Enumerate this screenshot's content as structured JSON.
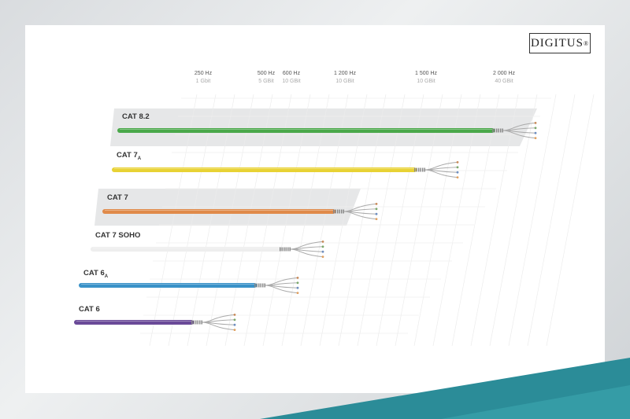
{
  "brand": {
    "logo": "DIGITUS",
    "registered": "®"
  },
  "colors": {
    "teal": "#2b8c98",
    "panel": "#e6e7e8"
  },
  "chart_data": {
    "type": "bar",
    "orientation": "horizontal",
    "ticks": [
      {
        "hz": "250 Hz",
        "speed": "1 Gbit"
      },
      {
        "hz": "500 Hz",
        "speed": "5 GBit"
      },
      {
        "hz": "600 Hz",
        "speed": "10 GBit"
      },
      {
        "hz": "1 200 Hz",
        "speed": "10 GBit"
      },
      {
        "hz": "1 500 Hz",
        "speed": "10 GBit"
      },
      {
        "hz": "2 000 Hz",
        "speed": "40 GBit"
      }
    ],
    "series": [
      {
        "label": "CAT 8.2",
        "sub": "",
        "value": 2000,
        "color": "#4aa84a"
      },
      {
        "label": "CAT 7",
        "sub": "A",
        "value": 1500,
        "color": "#e8d234"
      },
      {
        "label": "CAT 7",
        "sub": "",
        "value": 1200,
        "color": "#e08a4a"
      },
      {
        "label": "CAT 7 SOHO",
        "sub": "",
        "value": 600,
        "color": "#eeeeee"
      },
      {
        "label": "CAT 6",
        "sub": "A",
        "value": 500,
        "color": "#3a92c8"
      },
      {
        "label": "CAT 6",
        "sub": "",
        "value": 250,
        "color": "#6a4a98"
      }
    ]
  }
}
